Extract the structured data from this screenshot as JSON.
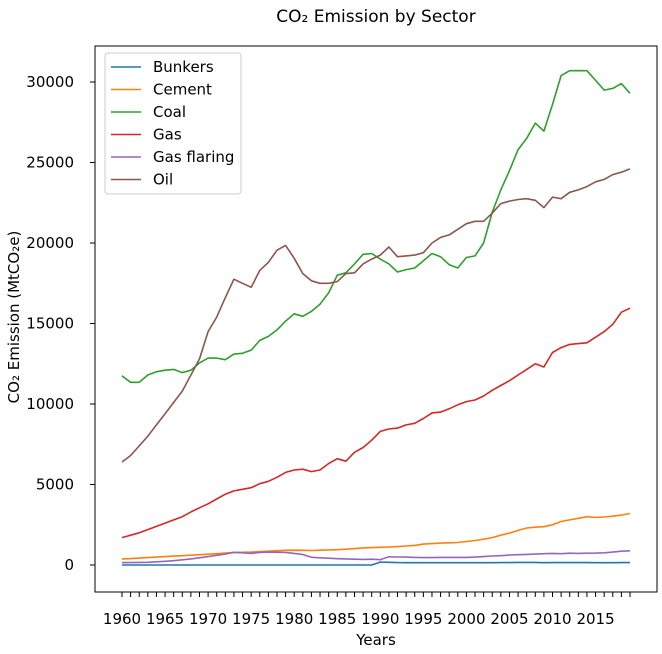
{
  "chart_data": {
    "type": "line",
    "title": "CO₂ Emission by Sector",
    "xlabel": "Years",
    "ylabel": "CO₂ Emission (MtCO₂e)",
    "xlim": [
      1960,
      2019
    ],
    "ylim": [
      0,
      30000
    ],
    "x_ticks": [
      1960,
      1965,
      1970,
      1975,
      1980,
      1985,
      1990,
      1995,
      2000,
      2005,
      2010,
      2015
    ],
    "y_ticks": [
      0,
      5000,
      10000,
      15000,
      20000,
      25000,
      30000
    ],
    "grid": false,
    "legend_position": "top-left",
    "x": [
      1960,
      1961,
      1962,
      1963,
      1964,
      1965,
      1966,
      1967,
      1968,
      1969,
      1970,
      1971,
      1972,
      1973,
      1974,
      1975,
      1976,
      1977,
      1978,
      1979,
      1980,
      1981,
      1982,
      1983,
      1984,
      1985,
      1986,
      1987,
      1988,
      1989,
      1990,
      1991,
      1992,
      1993,
      1994,
      1995,
      1996,
      1997,
      1998,
      1999,
      2000,
      2001,
      2002,
      2003,
      2004,
      2005,
      2006,
      2007,
      2008,
      2009,
      2010,
      2011,
      2012,
      2013,
      2014,
      2015,
      2016,
      2017,
      2018,
      2019
    ],
    "series": [
      {
        "name": "Bunkers",
        "color": "#1f77b4",
        "values": [
          0,
          0,
          0,
          0,
          0,
          0,
          0,
          0,
          0,
          0,
          0,
          0,
          0,
          0,
          0,
          0,
          0,
          0,
          0,
          0,
          0,
          0,
          0,
          0,
          0,
          0,
          0,
          0,
          0,
          0,
          180,
          170,
          150,
          140,
          140,
          140,
          140,
          140,
          140,
          140,
          140,
          140,
          140,
          140,
          150,
          150,
          160,
          160,
          160,
          140,
          150,
          150,
          150,
          150,
          150,
          140,
          140,
          140,
          150,
          150
        ]
      },
      {
        "name": "Cement",
        "color": "#ff7f0e",
        "values": [
          380,
          400,
          430,
          460,
          490,
          520,
          550,
          580,
          610,
          640,
          670,
          700,
          740,
          780,
          790,
          800,
          830,
          860,
          890,
          910,
          920,
          910,
          900,
          920,
          940,
          950,
          980,
          1020,
          1060,
          1080,
          1100,
          1120,
          1140,
          1180,
          1220,
          1300,
          1330,
          1360,
          1380,
          1400,
          1460,
          1520,
          1600,
          1700,
          1850,
          1980,
          2150,
          2300,
          2350,
          2380,
          2500,
          2700,
          2800,
          2900,
          3000,
          2950,
          2980,
          3030,
          3100,
          3200
        ]
      },
      {
        "name": "Coal",
        "color": "#2ca02c",
        "values": [
          11750,
          11350,
          11350,
          11800,
          12000,
          12100,
          12150,
          11950,
          12100,
          12550,
          12850,
          12850,
          12750,
          13100,
          13150,
          13350,
          13950,
          14200,
          14600,
          15150,
          15600,
          15450,
          15750,
          16200,
          16900,
          18000,
          18150,
          18700,
          19300,
          19350,
          19000,
          18700,
          18200,
          18350,
          18450,
          18900,
          19350,
          19150,
          18650,
          18450,
          19100,
          19200,
          20000,
          21900,
          23300,
          24500,
          25800,
          26500,
          27450,
          26950,
          28600,
          30400,
          30700,
          30700,
          30700,
          30100,
          29500,
          29600,
          29900,
          29300
        ]
      },
      {
        "name": "Gas",
        "color": "#d62728",
        "values": [
          1700,
          1850,
          2000,
          2200,
          2400,
          2600,
          2800,
          3000,
          3300,
          3550,
          3800,
          4100,
          4400,
          4600,
          4700,
          4800,
          5050,
          5200,
          5450,
          5750,
          5900,
          5950,
          5800,
          5900,
          6300,
          6600,
          6450,
          7000,
          7300,
          7750,
          8300,
          8450,
          8500,
          8700,
          8800,
          9100,
          9450,
          9500,
          9700,
          9950,
          10150,
          10250,
          10500,
          10850,
          11150,
          11450,
          11800,
          12150,
          12500,
          12300,
          13200,
          13500,
          13700,
          13750,
          13800,
          14150,
          14500,
          14950,
          15700,
          15950
        ]
      },
      {
        "name": "Gas flaring",
        "color": "#9467bd",
        "values": [
          150,
          150,
          160,
          170,
          200,
          230,
          270,
          320,
          380,
          450,
          520,
          600,
          680,
          780,
          760,
          720,
          780,
          800,
          790,
          780,
          720,
          650,
          480,
          450,
          420,
          390,
          380,
          360,
          350,
          360,
          330,
          510,
          500,
          490,
          470,
          460,
          460,
          470,
          470,
          470,
          470,
          490,
          520,
          560,
          580,
          620,
          640,
          660,
          680,
          700,
          720,
          700,
          730,
          720,
          730,
          740,
          760,
          800,
          860,
          880
        ]
      },
      {
        "name": "Oil",
        "color": "#8c564b",
        "values": [
          6400,
          6800,
          7400,
          8000,
          8700,
          9400,
          10100,
          10800,
          11800,
          12800,
          14500,
          15400,
          16600,
          17750,
          17500,
          17250,
          18300,
          18800,
          19550,
          19850,
          19050,
          18100,
          17650,
          17500,
          17500,
          17600,
          18100,
          18150,
          18700,
          19000,
          19250,
          19750,
          19150,
          19200,
          19250,
          19400,
          20000,
          20350,
          20500,
          20850,
          21200,
          21350,
          21350,
          21850,
          22450,
          22600,
          22700,
          22750,
          22650,
          22200,
          22850,
          22750,
          23150,
          23300,
          23500,
          23800,
          23950,
          24250,
          24400,
          24600
        ]
      }
    ]
  }
}
